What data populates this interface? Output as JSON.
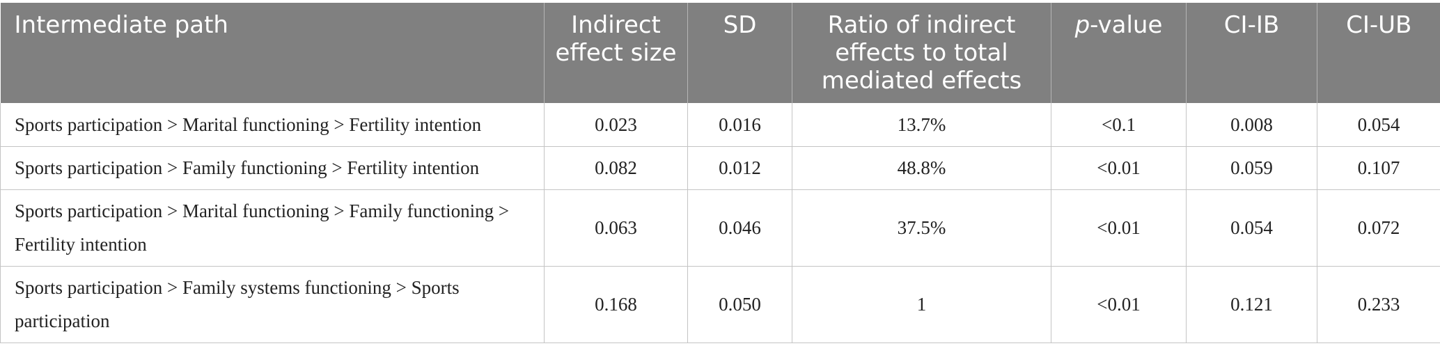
{
  "table": {
    "headers": [
      {
        "pre": "",
        "ital": "",
        "post": "Intermediate path"
      },
      {
        "pre": "",
        "ital": "",
        "post": "Indirect effect size"
      },
      {
        "pre": "",
        "ital": "",
        "post": "SD"
      },
      {
        "pre": "",
        "ital": "",
        "post": "Ratio of indirect effects to total mediated effects"
      },
      {
        "pre": "",
        "ital": "p",
        "post": "-value"
      },
      {
        "pre": "",
        "ital": "",
        "post": "CI-IB"
      },
      {
        "pre": "",
        "ital": "",
        "post": "CI-UB"
      }
    ],
    "rows": [
      [
        "Sports participation > Marital functioning > Fertility intention",
        "0.023",
        "0.016",
        "13.7%",
        "<0.1",
        "0.008",
        "0.054"
      ],
      [
        "Sports participation > Family functioning > Fertility intention",
        "0.082",
        "0.012",
        "48.8%",
        "<0.01",
        "0.059",
        "0.107"
      ],
      [
        "Sports participation > Marital functioning > Family functioning > Fertility intention",
        "0.063",
        "0.046",
        "37.5%",
        "<0.01",
        "0.054",
        "0.072"
      ],
      [
        "Sports participation > Family systems functioning > Sports participation",
        "0.168",
        "0.050",
        "1",
        "<0.01",
        "0.121",
        "0.233"
      ]
    ]
  },
  "colors": {
    "header_bg": "#808080",
    "header_text": "#ffffff",
    "border": "#c4c4c4",
    "body_text": "#222222"
  }
}
